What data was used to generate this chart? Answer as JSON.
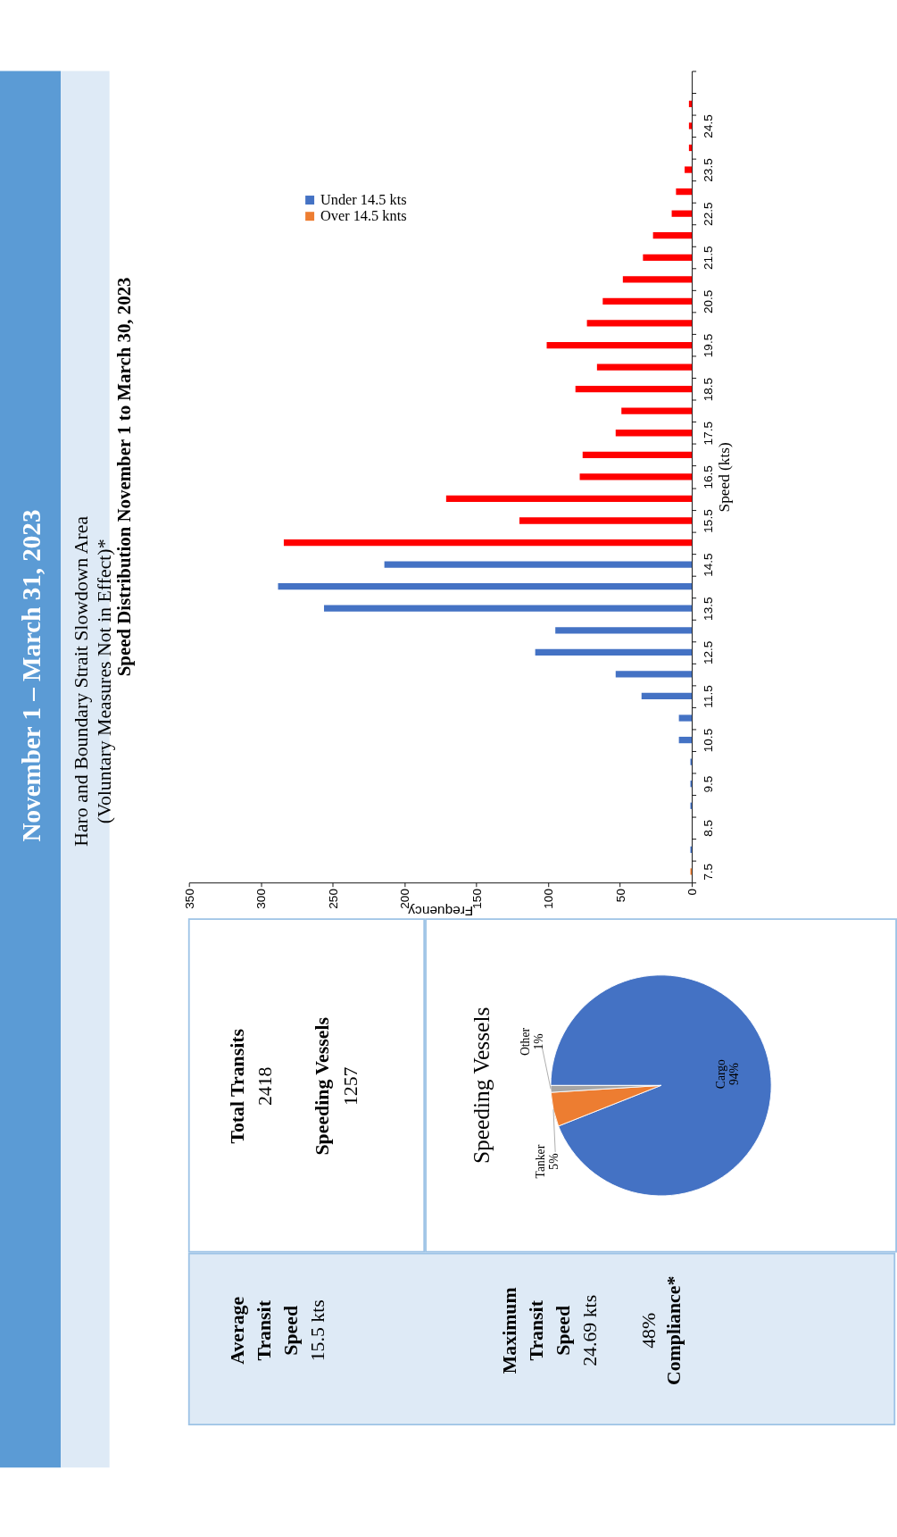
{
  "chart_data": [
    {
      "type": "other",
      "title": "November 1 – March 31, 2023",
      "subtitle": [
        "Haro and Boundary Strait Slowdown Area",
        "(Voluntary Measures Not in Effect)*"
      ]
    },
    {
      "type": "bar",
      "orientation": "horizontal",
      "title": "Speed Distribution November 1 to March 30, 2023",
      "xlabel": "Frequency",
      "ylabel": "Speed (kts)",
      "legend": "top left",
      "categories": [
        null,
        null,
        "24.5",
        null,
        "23.5",
        null,
        "22.5",
        null,
        "21.5",
        null,
        "20.5",
        null,
        "19.5",
        null,
        "18.5",
        null,
        "17.5",
        null,
        "16.5",
        null,
        "15.5",
        null,
        "14.5",
        null,
        "13.5",
        null,
        "12.5",
        null,
        "11.5",
        null,
        "10.5",
        null,
        "9.5",
        null,
        "8.5",
        null,
        "7.5"
      ],
      "series": [
        {
          "name": "Under 14.5 kts",
          "color": "#4472c4",
          "values": [
            null,
            null,
            null,
            null,
            null,
            null,
            null,
            null,
            null,
            null,
            null,
            null,
            null,
            null,
            null,
            null,
            null,
            null,
            null,
            null,
            null,
            null,
            214,
            288,
            256,
            95,
            109,
            53,
            35,
            9,
            9,
            1,
            1,
            1,
            null,
            1,
            null
          ]
        },
        {
          "name": "Over 14.5 knts",
          "color": "#ed7d31",
          "values": [
            null,
            null,
            null,
            null,
            null,
            null,
            null,
            null,
            null,
            null,
            null,
            null,
            null,
            null,
            null,
            null,
            null,
            null,
            null,
            null,
            null,
            null,
            null,
            null,
            null,
            null,
            null,
            null,
            null,
            null,
            null,
            null,
            null,
            null,
            null,
            null,
            1
          ]
        },
        {
          "color": "#ff0000",
          "values": [
            null,
            2,
            2,
            2,
            5,
            11,
            14,
            27,
            34,
            48,
            62,
            73,
            101,
            66,
            81,
            49,
            53,
            76,
            78,
            171,
            120,
            284,
            null,
            null,
            null,
            null,
            null,
            null,
            null,
            null,
            null,
            null,
            null,
            null,
            null,
            null,
            null
          ]
        }
      ],
      "xlim": [
        350,
        0
      ],
      "xticks": [
        0,
        50,
        100,
        150,
        200,
        250,
        300,
        350
      ]
    },
    {
      "type": "other",
      "annotations": [
        "Total Transits",
        "2418",
        "Speeding Vessels",
        "1257",
        "Average Transit Speed",
        "15.5 kts",
        "Maximum Transit Speed",
        "24.69 kts",
        "48%",
        "Compliance*"
      ]
    },
    {
      "type": "pie",
      "title": "Speeding Vessels",
      "categories": [
        "Cargo",
        "Tanker",
        "Other"
      ],
      "values": [
        94,
        5,
        1
      ],
      "colors": [
        "#4472c4",
        "#ed7d31",
        "#a5a5a5"
      ],
      "value_labels": [
        "94%",
        "5%",
        "1%"
      ]
    }
  ]
}
